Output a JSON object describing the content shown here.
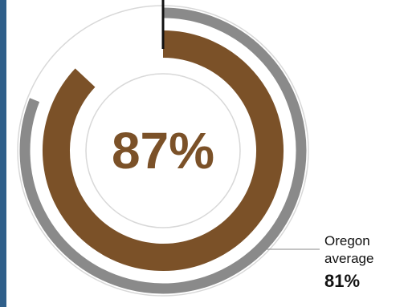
{
  "chart_data": {
    "type": "donut",
    "primary": {
      "value": 87,
      "label": "87%",
      "color": "#7b5128",
      "track_color": "#ffffff"
    },
    "comparison": {
      "name_line1": "Oregon",
      "name_line2": "average",
      "value": 81,
      "label": "81%",
      "color": "#8a8a8a"
    },
    "range": [
      0,
      100
    ],
    "text_color": "#7b5128",
    "callout_text_color": "#111111",
    "marker_color": "#111111",
    "guide_ring_color": "#d8d8d8",
    "background": "#ffffff",
    "edge_color": "#2f5f8a"
  }
}
